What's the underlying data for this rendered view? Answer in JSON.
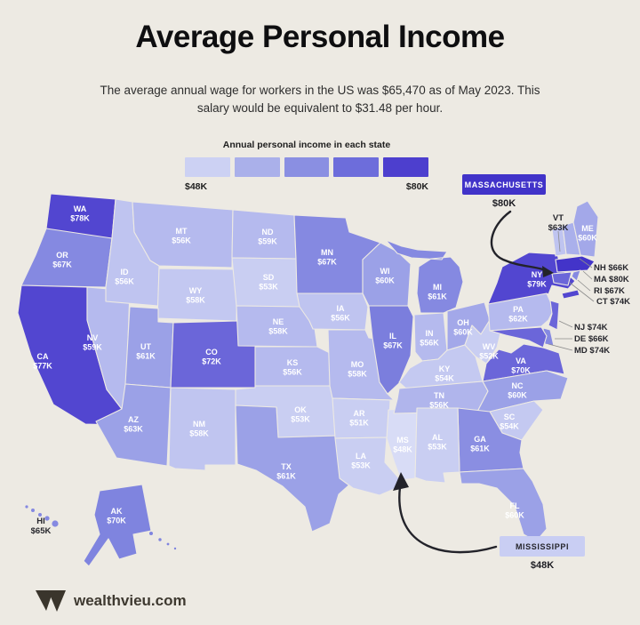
{
  "title": "Average Personal Income",
  "subtitle_line1": "The average annual wage for workers in the US was $65,470 as of May 2023. This",
  "subtitle_line2": "salary would be equivalent to $31.48 per hour.",
  "legend": {
    "title": "Annual personal income in each state",
    "min_label": "$48K",
    "max_label": "$80K",
    "colors": [
      "#ccd1f3",
      "#aab0ea",
      "#8a8fe2",
      "#6d6ddb",
      "#4d3fce"
    ]
  },
  "callouts": {
    "massachusetts": {
      "label": "MASSACHUSETTS",
      "value": "$80K"
    },
    "mississippi": {
      "label": "MISSISSIPPI",
      "value": "$48K"
    }
  },
  "footer": {
    "brand": "wealthvieu.com"
  },
  "colors": {
    "background": "#edeae3",
    "callout_dark": "#4133c9",
    "callout_light": "#c9cef3",
    "arrow": "#23232a"
  },
  "chart_data": {
    "type": "choropleth",
    "geography": "United States",
    "metric": "Annual personal income in each state",
    "unit": "USD thousands per year",
    "national_average": "$65,470",
    "hourly_equivalent": "$31.48",
    "as_of": "May 2023",
    "range": {
      "min_label": "$48K",
      "max_label": "$80K"
    },
    "states": [
      {
        "abbr": "WA",
        "value": 78,
        "label": "$78K",
        "color": "#5246d0"
      },
      {
        "abbr": "OR",
        "value": 67,
        "label": "$67K",
        "color": "#8589e1"
      },
      {
        "abbr": "CA",
        "value": 77,
        "label": "$77K",
        "color": "#5246d0"
      },
      {
        "abbr": "NV",
        "value": 59,
        "label": "$59K",
        "color": "#b5baee"
      },
      {
        "abbr": "ID",
        "value": 56,
        "label": "$56K",
        "color": "#bfc4f0"
      },
      {
        "abbr": "MT",
        "value": 56,
        "label": "$56K",
        "color": "#b5baee"
      },
      {
        "abbr": "WY",
        "value": 58,
        "label": "$58K",
        "color": "#c3c8f1"
      },
      {
        "abbr": "UT",
        "value": 61,
        "label": "$61K",
        "color": "#9ba1e7"
      },
      {
        "abbr": "CO",
        "value": 72,
        "label": "$72K",
        "color": "#6b66d9"
      },
      {
        "abbr": "AZ",
        "value": 63,
        "label": "$63K",
        "color": "#9ba1e7"
      },
      {
        "abbr": "NM",
        "value": 58,
        "label": "$58K",
        "color": "#c0c5f0"
      },
      {
        "abbr": "ND",
        "value": 59,
        "label": "$59K",
        "color": "#b5baee"
      },
      {
        "abbr": "SD",
        "value": 53,
        "label": "$53K",
        "color": "#c9cef2"
      },
      {
        "abbr": "NE",
        "value": 58,
        "label": "$58K",
        "color": "#b5baee"
      },
      {
        "abbr": "KS",
        "value": 56,
        "label": "$56K",
        "color": "#b5baee"
      },
      {
        "abbr": "OK",
        "value": 53,
        "label": "$53K",
        "color": "#c9cef2"
      },
      {
        "abbr": "TX",
        "value": 61,
        "label": "$61K",
        "color": "#9ba1e7"
      },
      {
        "abbr": "MN",
        "value": 67,
        "label": "$67K",
        "color": "#8589e1"
      },
      {
        "abbr": "IA",
        "value": 56,
        "label": "$56K",
        "color": "#bfc4f0"
      },
      {
        "abbr": "MO",
        "value": 58,
        "label": "$58K",
        "color": "#b5baee"
      },
      {
        "abbr": "AR",
        "value": 51,
        "label": "$51K",
        "color": "#c9cef2"
      },
      {
        "abbr": "LA",
        "value": 53,
        "label": "$53K",
        "color": "#c9cef2"
      },
      {
        "abbr": "WI",
        "value": 60,
        "label": "$60K",
        "color": "#9ba1e7"
      },
      {
        "abbr": "IL",
        "value": 67,
        "label": "$67K",
        "color": "#7b7edd"
      },
      {
        "abbr": "MS",
        "value": 48,
        "label": "$48K",
        "color": "#d8dcf6"
      },
      {
        "abbr": "MI",
        "value": 61,
        "label": "$61K",
        "color": "#8589e1"
      },
      {
        "abbr": "IN",
        "value": 56,
        "label": "$56K",
        "color": "#b5baee"
      },
      {
        "abbr": "OH",
        "value": 60,
        "label": "$60K",
        "color": "#a3a8e9"
      },
      {
        "abbr": "KY",
        "value": 54,
        "label": "$54K",
        "color": "#c4c9f1"
      },
      {
        "abbr": "TN",
        "value": 56,
        "label": "$56K",
        "color": "#b0b5ec"
      },
      {
        "abbr": "WV",
        "value": 52,
        "label": "$52K",
        "color": "#c9cef2"
      },
      {
        "abbr": "VA",
        "value": 70,
        "label": "$70K",
        "color": "#6b66d9"
      },
      {
        "abbr": "NC",
        "value": 60,
        "label": "$60K",
        "color": "#9ba1e7"
      },
      {
        "abbr": "SC",
        "value": 54,
        "label": "$54K",
        "color": "#c4c9f1"
      },
      {
        "abbr": "GA",
        "value": 61,
        "label": "$61K",
        "color": "#8a8ee2"
      },
      {
        "abbr": "AL",
        "value": 53,
        "label": "$53K",
        "color": "#c9cef2"
      },
      {
        "abbr": "FL",
        "value": 60,
        "label": "$60K",
        "color": "#9ba1e7"
      },
      {
        "abbr": "PA",
        "value": 62,
        "label": "$62K",
        "color": "#b5baee"
      },
      {
        "abbr": "NY",
        "value": 79,
        "label": "$79K",
        "color": "#5246d0"
      },
      {
        "abbr": "NJ",
        "value": 74,
        "label": "$74K",
        "color": "#6b66d9"
      },
      {
        "abbr": "DE",
        "value": 66,
        "label": "$66K",
        "color": "#8589e1"
      },
      {
        "abbr": "MD",
        "value": 74,
        "label": "$74K",
        "color": "#6b66d9"
      },
      {
        "abbr": "VT",
        "value": 63,
        "label": "$63K",
        "color": "#bfc4f0"
      },
      {
        "abbr": "NH",
        "value": 66,
        "label": "$66K",
        "color": "#aab0eb"
      },
      {
        "abbr": "ME",
        "value": 60,
        "label": "$60K",
        "color": "#a3a8e9"
      },
      {
        "abbr": "MA",
        "value": 80,
        "label": "$80K",
        "color": "#4334c9"
      },
      {
        "abbr": "RI",
        "value": 67,
        "label": "$67K",
        "color": "#8589e1"
      },
      {
        "abbr": "CT",
        "value": 74,
        "label": "$74K",
        "color": "#6b66d9"
      },
      {
        "abbr": "AK",
        "value": 70,
        "label": "$70K",
        "color": "#7f84df"
      },
      {
        "abbr": "HI",
        "value": 65,
        "label": "$65K",
        "color": "#8589e1"
      }
    ]
  }
}
